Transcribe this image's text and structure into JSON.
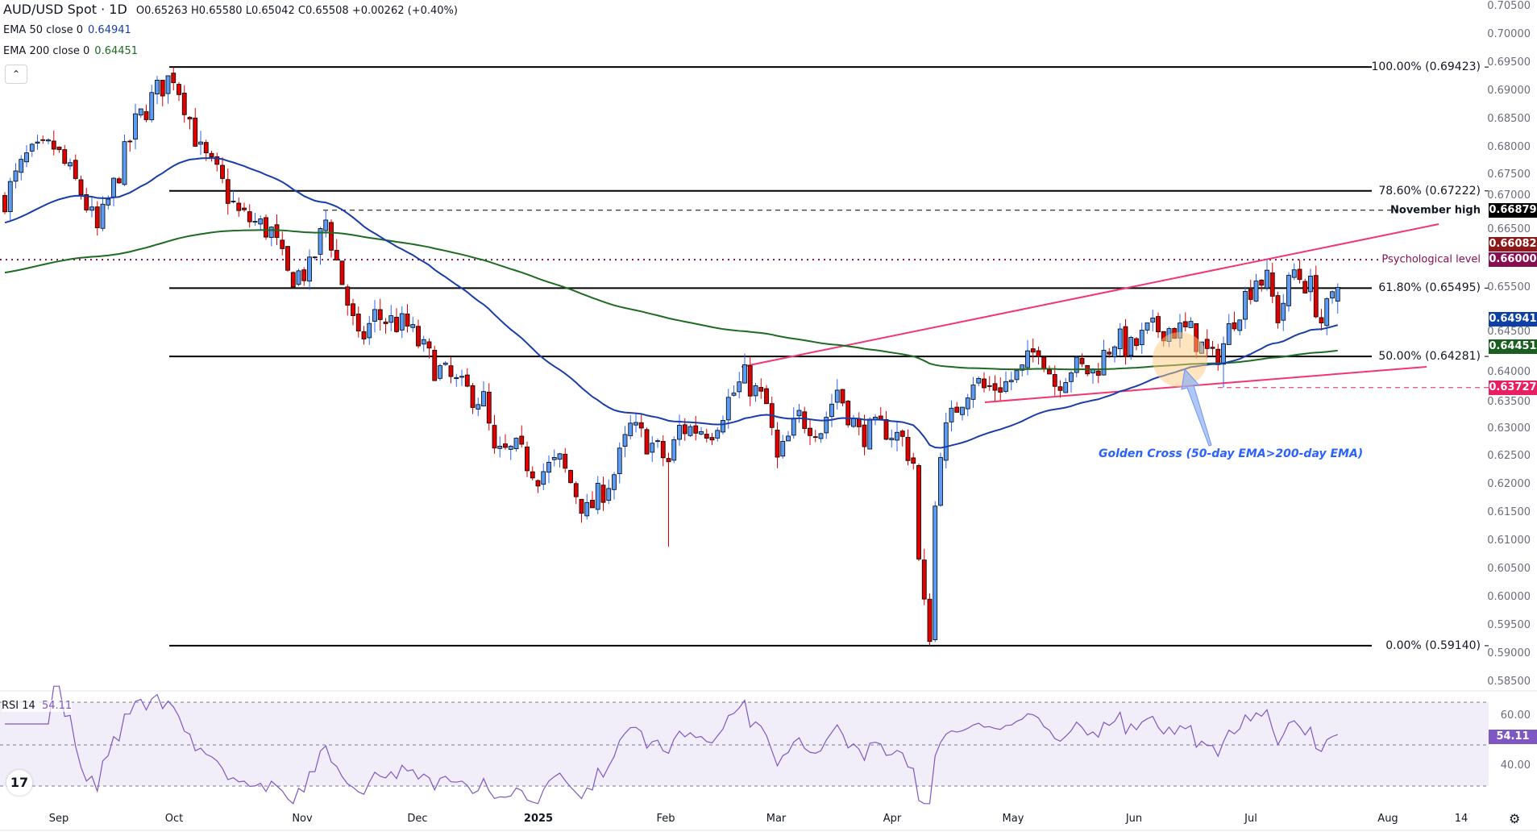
{
  "header": {
    "symbol": "AUD/USD Spot · 1D",
    "open_label": "O",
    "open": "0.65263",
    "high_label": "H",
    "high": "0.65580",
    "low_label": "L",
    "low": "0.65042",
    "close_label": "C",
    "close": "0.65508",
    "change": "+0.00262 (+0.40%)"
  },
  "indicators": {
    "ema50": {
      "label": "EMA 50 close 0",
      "value": "0.64941",
      "color": "#1a3ea8"
    },
    "ema200": {
      "label": "EMA 200 close 0",
      "value": "0.64451",
      "color": "#1e6b23"
    },
    "rsi": {
      "label": "RSI 14",
      "value": "54.11",
      "color": "#7e57c2"
    }
  },
  "collapse_icon": "chevron-up-icon",
  "price_axis": [
    "0.70500",
    "0.70000",
    "0.69500",
    "0.69000",
    "0.68500",
    "0.68000",
    "0.67500",
    "0.67000",
    "0.66500",
    "0.65500",
    "0.64500",
    "0.64000",
    "0.63500",
    "0.63000",
    "0.62500",
    "0.62000",
    "0.61500",
    "0.61000",
    "0.60500",
    "0.60000",
    "0.59500",
    "0.59000",
    "0.58500"
  ],
  "price_tags": [
    {
      "text": "0.66879",
      "price": 0.66879,
      "color": "#000000"
    },
    {
      "text": "0.66082",
      "price": 0.6617,
      "color": "#8b1a1a"
    },
    {
      "text": "0.66000",
      "price": 0.66,
      "color": "#880e4f"
    },
    {
      "text": "0.64941",
      "price": 0.64941,
      "color": "#0d3fa6"
    },
    {
      "text": "0.64451",
      "price": 0.64451,
      "color": "#1b5e20"
    },
    {
      "text": "0.63727",
      "price": 0.63727,
      "color": "#e91e63"
    }
  ],
  "fib_levels": [
    {
      "label": "100.00% (0.69423)",
      "price": 0.69423
    },
    {
      "label": "78.60% (0.67222)",
      "price": 0.67222
    },
    {
      "label": "61.80% (0.65495)",
      "price": 0.65495
    },
    {
      "label": "50.00% (0.64281)",
      "price": 0.64281
    },
    {
      "label": "0.00% (0.59140)",
      "price": 0.5914
    }
  ],
  "annotations": {
    "november_high": "November high",
    "psychological": "Psychological level",
    "golden_cross": "Golden Cross (50-day EMA>200-day EMA)"
  },
  "rsi_axis": [
    "60.00",
    "40.00"
  ],
  "time_axis": [
    "Sep",
    "Oct",
    "Nov",
    "Dec",
    "2025",
    "Feb",
    "Mar",
    "Apr",
    "May",
    "Jun",
    "Jul",
    "Aug",
    "14"
  ],
  "settings_icon": "gear-icon",
  "logo": "TV",
  "price_keypoints": [
    [
      0,
      0.671
    ],
    [
      4,
      0.678
    ],
    [
      9,
      0.68
    ],
    [
      14,
      0.672
    ],
    [
      17,
      0.665
    ],
    [
      20,
      0.673
    ],
    [
      24,
      0.684
    ],
    [
      28,
      0.69
    ],
    [
      31,
      0.693
    ],
    [
      33,
      0.688
    ],
    [
      36,
      0.679
    ],
    [
      39,
      0.675
    ],
    [
      43,
      0.668
    ],
    [
      49,
      0.665
    ],
    [
      52,
      0.657
    ],
    [
      56,
      0.658
    ],
    [
      59,
      0.667
    ],
    [
      62,
      0.656
    ],
    [
      65,
      0.645
    ],
    [
      68,
      0.65
    ],
    [
      74,
      0.648
    ],
    [
      79,
      0.641
    ],
    [
      84,
      0.637
    ],
    [
      88,
      0.635
    ],
    [
      90,
      0.625
    ],
    [
      94,
      0.626
    ],
    [
      98,
      0.622
    ],
    [
      102,
      0.624
    ],
    [
      107,
      0.615
    ],
    [
      112,
      0.622
    ],
    [
      115,
      0.63
    ],
    [
      119,
      0.627
    ],
    [
      122,
      0.624
    ],
    [
      124,
      0.63
    ],
    [
      130,
      0.63
    ],
    [
      133,
      0.635
    ],
    [
      136,
      0.639
    ],
    [
      140,
      0.634
    ],
    [
      142,
      0.624
    ],
    [
      144,
      0.628
    ],
    [
      146,
      0.632
    ],
    [
      150,
      0.63
    ],
    [
      153,
      0.637
    ],
    [
      157,
      0.629
    ],
    [
      162,
      0.63
    ],
    [
      165,
      0.628
    ],
    [
      167,
      0.624
    ],
    [
      168,
      0.606
    ],
    [
      169,
      0.598
    ],
    [
      170,
      0.594
    ],
    [
      171,
      0.616
    ],
    [
      172,
      0.627
    ],
    [
      175,
      0.634
    ],
    [
      178,
      0.639
    ],
    [
      180,
      0.637
    ],
    [
      184,
      0.638
    ],
    [
      187,
      0.64
    ],
    [
      190,
      0.645
    ],
    [
      193,
      0.638
    ],
    [
      196,
      0.641
    ],
    [
      200,
      0.64
    ],
    [
      204,
      0.646
    ],
    [
      207,
      0.644
    ],
    [
      210,
      0.647
    ],
    [
      213,
      0.648
    ],
    [
      218,
      0.647
    ],
    [
      222,
      0.642
    ],
    [
      224,
      0.645
    ],
    [
      226,
      0.65
    ],
    [
      230,
      0.657
    ],
    [
      232,
      0.656
    ],
    [
      234,
      0.65
    ],
    [
      237,
      0.658
    ],
    [
      240,
      0.655
    ],
    [
      242,
      0.649
    ],
    [
      244,
      0.6526
    ],
    [
      245,
      0.65508
    ]
  ]
}
